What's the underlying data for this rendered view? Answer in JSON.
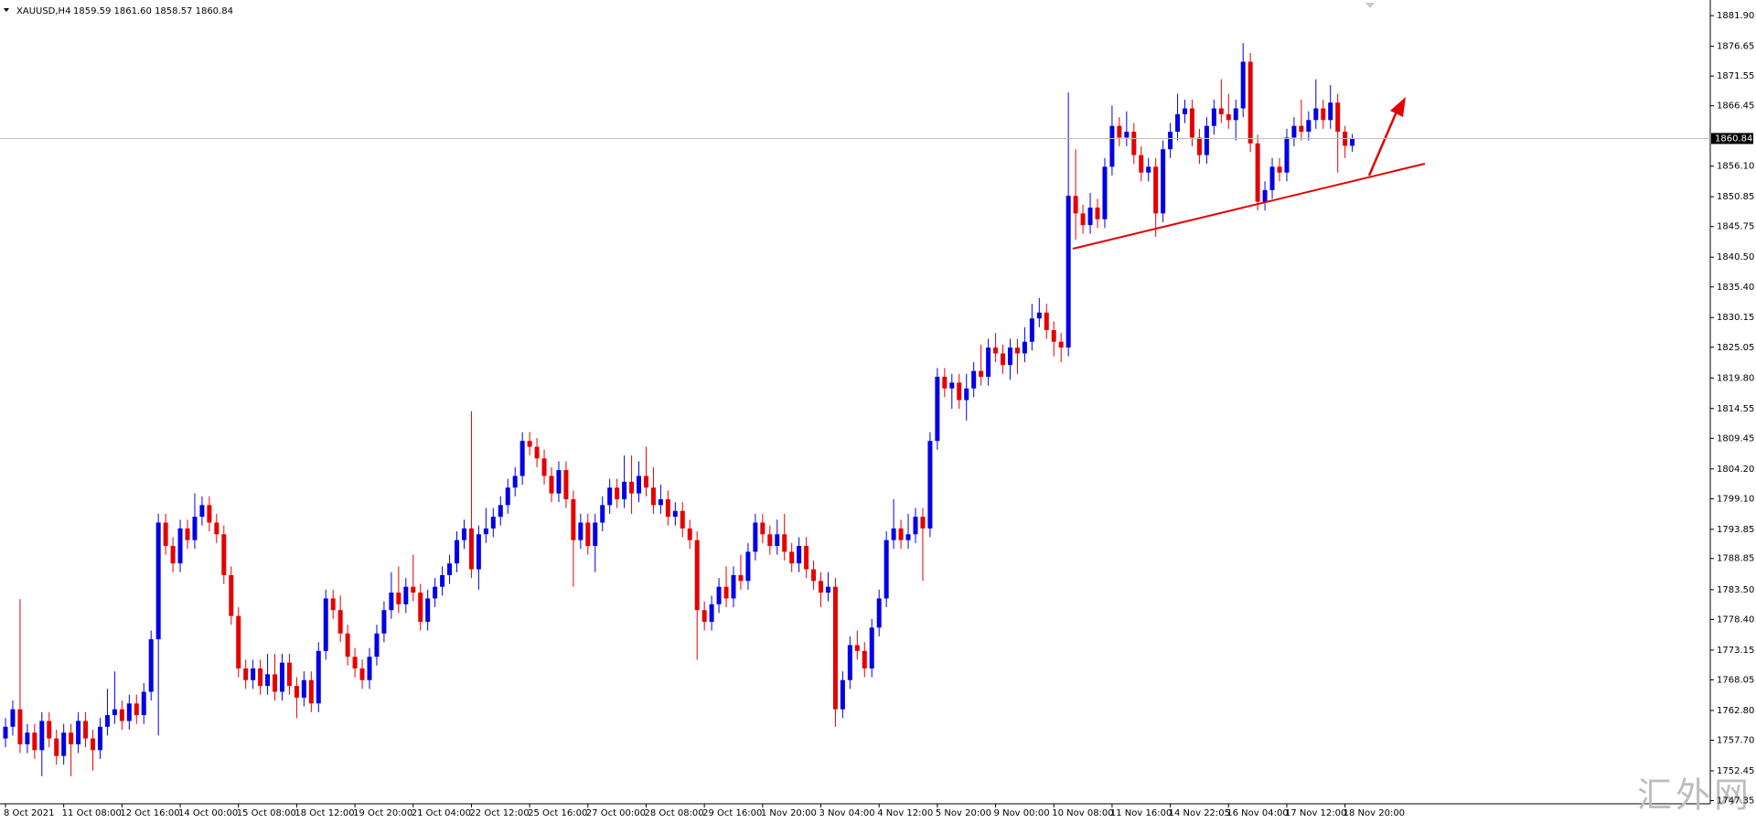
{
  "chart_data": {
    "type": "candlestick",
    "title": "XAUUSD,H4",
    "subtitle": "1859.59 1861.60 1858.57 1860.84",
    "watermark": "汇外网",
    "up_color": "#0000e6",
    "down_color": "#e60000",
    "ylim": [
      1746.8,
      1884.0
    ],
    "yticks": [
      {
        "value": 1881.9,
        "label": "1881.90"
      },
      1876.65,
      1871.55,
      1866.45,
      {
        "value": 1856.1,
        "label": "1856.10"
      },
      1850.85,
      1845.75,
      {
        "value": 1840.5,
        "label": "1840.50"
      },
      {
        "value": 1835.4,
        "label": "1835.40"
      },
      1830.15,
      1825.05,
      {
        "value": 1819.8,
        "label": "1819.80"
      },
      1814.55,
      1809.45,
      {
        "value": 1804.2,
        "label": "1804.20"
      },
      {
        "value": 1799.1,
        "label": "1799.10"
      },
      1793.85,
      1788.85,
      {
        "value": 1783.5,
        "label": "1783.50"
      },
      {
        "value": 1778.4,
        "label": "1778.40"
      },
      1773.15,
      1768.05,
      {
        "value": 1762.8,
        "label": "1762.80"
      },
      {
        "value": 1757.7,
        "label": "1757.70"
      },
      1752.45,
      1747.35
    ],
    "categories": [
      "8 Oct 2021",
      null,
      null,
      null,
      null,
      null,
      null,
      null,
      "11 Oct 08:00",
      null,
      null,
      null,
      null,
      null,
      null,
      null,
      "12 Oct 16:00",
      null,
      null,
      null,
      null,
      null,
      null,
      null,
      "14 Oct 00:00",
      null,
      null,
      null,
      null,
      null,
      null,
      null,
      "15 Oct 08:00",
      null,
      null,
      null,
      null,
      null,
      null,
      null,
      "18 Oct 12:00",
      null,
      null,
      null,
      null,
      null,
      null,
      null,
      "19 Oct 20:00",
      null,
      null,
      null,
      null,
      null,
      null,
      null,
      "21 Oct 04:00",
      null,
      null,
      null,
      null,
      null,
      null,
      null,
      "22 Oct 12:00",
      null,
      null,
      null,
      null,
      null,
      null,
      null,
      "25 Oct 16:00",
      null,
      null,
      null,
      null,
      null,
      null,
      null,
      "27 Oct 00:00",
      null,
      null,
      null,
      null,
      null,
      null,
      null,
      "28 Oct 08:00",
      null,
      null,
      null,
      null,
      null,
      null,
      null,
      "29 Oct 16:00",
      null,
      null,
      null,
      null,
      null,
      null,
      null,
      "1 Nov 20:00",
      null,
      null,
      null,
      null,
      null,
      null,
      null,
      "3 Nov 04:00",
      null,
      null,
      null,
      null,
      null,
      null,
      null,
      "4 Nov 12:00",
      null,
      null,
      null,
      null,
      null,
      null,
      null,
      "5 Nov 20:00",
      null,
      null,
      null,
      null,
      null,
      null,
      null,
      "9 Nov 00:00",
      null,
      null,
      null,
      null,
      null,
      null,
      null,
      "10 Nov 08:00",
      null,
      null,
      null,
      null,
      null,
      null,
      null,
      "11 Nov 16:00",
      null,
      null,
      null,
      null,
      null,
      null,
      null,
      "14 Nov 22:05",
      null,
      null,
      null,
      null,
      null,
      null,
      null,
      "16 Nov 04:00",
      null,
      null,
      null,
      null,
      null,
      null,
      null,
      "17 Nov 12:00",
      null,
      null,
      null,
      null,
      null,
      null,
      null,
      "18 Nov 20:00",
      null
    ],
    "candles": [
      [
        1758,
        1761.5,
        1756.5,
        1760
      ],
      [
        1760,
        1764.5,
        1758.5,
        1763
      ],
      [
        1763,
        1781.9,
        1755.5,
        1757
      ],
      [
        1757,
        1760.5,
        1755.5,
        1759
      ],
      [
        1759,
        1760.5,
        1754.5,
        1756
      ],
      [
        1756,
        1762.5,
        1751.5,
        1761
      ],
      [
        1761,
        1762.5,
        1756.5,
        1758
      ],
      [
        1758,
        1759.5,
        1753.5,
        1755
      ],
      [
        1755,
        1760.5,
        1753.5,
        1759
      ],
      [
        1759,
        1760.5,
        1751.5,
        1757
      ],
      [
        1757,
        1762.5,
        1755.5,
        1761
      ],
      [
        1761,
        1762.5,
        1756.5,
        1758
      ],
      [
        1758,
        1759.5,
        1752.5,
        1756
      ],
      [
        1756,
        1761.5,
        1754.5,
        1760
      ],
      [
        1760,
        1766.5,
        1758.5,
        1762
      ],
      [
        1762,
        1769.5,
        1760.5,
        1763
      ],
      [
        1763,
        1764.5,
        1759.5,
        1761
      ],
      [
        1761,
        1765.5,
        1759.5,
        1764
      ],
      [
        1764,
        1765.5,
        1760.5,
        1762
      ],
      [
        1762,
        1767.5,
        1760.5,
        1766
      ],
      [
        1766,
        1776.5,
        1764.5,
        1775
      ],
      [
        1775,
        1796.5,
        1758.5,
        1795
      ],
      [
        1795,
        1796.5,
        1789.5,
        1791
      ],
      [
        1791,
        1792.5,
        1786.5,
        1788
      ],
      [
        1788,
        1795.5,
        1786.5,
        1794
      ],
      [
        1794,
        1795.5,
        1790.5,
        1792
      ],
      [
        1792,
        1800,
        1790.5,
        1796
      ],
      [
        1796,
        1799.5,
        1794.5,
        1798
      ],
      [
        1798,
        1799.5,
        1793.5,
        1795
      ],
      [
        1795,
        1796.5,
        1791.5,
        1793
      ],
      [
        1793,
        1794.5,
        1784.5,
        1786
      ],
      [
        1786,
        1787.5,
        1777.5,
        1779
      ],
      [
        1779,
        1780.5,
        1768.5,
        1770
      ],
      [
        1770,
        1771.5,
        1766.5,
        1768
      ],
      [
        1768,
        1771.5,
        1766.5,
        1770
      ],
      [
        1770,
        1771.5,
        1765.5,
        1767
      ],
      [
        1767,
        1772.5,
        1765.5,
        1769
      ],
      [
        1769,
        1772.5,
        1764.5,
        1766
      ],
      [
        1766,
        1772.5,
        1764.5,
        1771
      ],
      [
        1771,
        1772.5,
        1765.5,
        1767
      ],
      [
        1767,
        1768.5,
        1761.5,
        1765
      ],
      [
        1765,
        1769.5,
        1763.5,
        1768
      ],
      [
        1768,
        1769.5,
        1762.5,
        1764
      ],
      [
        1764,
        1774.5,
        1762.5,
        1773
      ],
      [
        1773,
        1783.5,
        1771.5,
        1782
      ],
      [
        1782,
        1783.5,
        1778.5,
        1780
      ],
      [
        1780,
        1782.5,
        1774.5,
        1776
      ],
      [
        1776,
        1777.5,
        1770.5,
        1772
      ],
      [
        1772,
        1773.5,
        1768.5,
        1770
      ],
      [
        1770,
        1771.5,
        1766.5,
        1768
      ],
      [
        1768,
        1773.5,
        1766.5,
        1772
      ],
      [
        1772,
        1777.5,
        1770.5,
        1776
      ],
      [
        1776,
        1781.5,
        1774.5,
        1780
      ],
      [
        1780,
        1786.5,
        1778.5,
        1783
      ],
      [
        1783,
        1787.5,
        1779.5,
        1781
      ],
      [
        1781,
        1785.5,
        1779.5,
        1784
      ],
      [
        1784,
        1789.5,
        1781.5,
        1783
      ],
      [
        1783,
        1784.5,
        1776.5,
        1778
      ],
      [
        1778,
        1783.5,
        1776.5,
        1782
      ],
      [
        1782,
        1785.5,
        1780.5,
        1784
      ],
      [
        1784,
        1787.5,
        1782.5,
        1786
      ],
      [
        1786,
        1789.5,
        1784.5,
        1788
      ],
      [
        1788,
        1793.5,
        1786.5,
        1792
      ],
      [
        1792,
        1795.5,
        1790.5,
        1794
      ],
      [
        1794,
        1814.1,
        1785.5,
        1787
      ],
      [
        1787,
        1794.5,
        1783.5,
        1793
      ],
      [
        1793,
        1797.5,
        1791.5,
        1794
      ],
      [
        1794,
        1797.5,
        1792.5,
        1796
      ],
      [
        1796,
        1799.5,
        1794.5,
        1798
      ],
      [
        1798,
        1802.5,
        1796.5,
        1801
      ],
      [
        1801,
        1804.5,
        1799.5,
        1803
      ],
      [
        1803,
        1810.5,
        1801.5,
        1809
      ],
      [
        1809,
        1810.5,
        1806.5,
        1808
      ],
      [
        1808,
        1809.5,
        1804.5,
        1806
      ],
      [
        1806,
        1807.5,
        1801.5,
        1803
      ],
      [
        1803,
        1804.5,
        1798.5,
        1800
      ],
      [
        1800,
        1805.5,
        1798.5,
        1804
      ],
      [
        1804,
        1805.5,
        1797.5,
        1799
      ],
      [
        1799,
        1800.5,
        1784,
        1792
      ],
      [
        1792,
        1796.5,
        1790.5,
        1795
      ],
      [
        1795,
        1796.5,
        1789.5,
        1791
      ],
      [
        1791,
        1796.5,
        1786.5,
        1795
      ],
      [
        1795,
        1799.5,
        1793.5,
        1798
      ],
      [
        1798,
        1802.5,
        1796.5,
        1801
      ],
      [
        1801,
        1802.5,
        1797.5,
        1799
      ],
      [
        1799,
        1806.5,
        1797.5,
        1802
      ],
      [
        1802,
        1806.5,
        1796.5,
        1800
      ],
      [
        1800,
        1805.5,
        1798.5,
        1803
      ],
      [
        1803,
        1808,
        1799.5,
        1801
      ],
      [
        1801,
        1804.5,
        1796.5,
        1798
      ],
      [
        1798,
        1801.5,
        1796.5,
        1799
      ],
      [
        1799,
        1800.5,
        1794.5,
        1796
      ],
      [
        1796,
        1798.5,
        1794.5,
        1797
      ],
      [
        1797,
        1798.5,
        1792.5,
        1794
      ],
      [
        1794,
        1795.5,
        1790.5,
        1792
      ],
      [
        1792,
        1793.5,
        1771.5,
        1780
      ],
      [
        1780,
        1781.5,
        1776.5,
        1778
      ],
      [
        1778,
        1782.5,
        1776.5,
        1781
      ],
      [
        1781,
        1785.5,
        1779.5,
        1784
      ],
      [
        1784,
        1787.5,
        1780.5,
        1782
      ],
      [
        1782,
        1787.5,
        1780.5,
        1786
      ],
      [
        1786,
        1789.5,
        1783.5,
        1785
      ],
      [
        1785,
        1791.5,
        1783.5,
        1790
      ],
      [
        1790,
        1796.5,
        1788.5,
        1795
      ],
      [
        1795,
        1796.5,
        1791.5,
        1793
      ],
      [
        1793,
        1794.5,
        1789.5,
        1791
      ],
      [
        1791,
        1795.5,
        1789.5,
        1793
      ],
      [
        1793,
        1796.5,
        1788.5,
        1790
      ],
      [
        1790,
        1791.5,
        1786.5,
        1788
      ],
      [
        1788,
        1792.5,
        1786.5,
        1791
      ],
      [
        1791,
        1792.5,
        1785.5,
        1787
      ],
      [
        1787,
        1788.5,
        1783.5,
        1785
      ],
      [
        1785,
        1786.5,
        1780.5,
        1783
      ],
      [
        1783,
        1786.5,
        1781.5,
        1784
      ],
      [
        1784,
        1785.5,
        1760,
        1763
      ],
      [
        1763,
        1769.5,
        1761.5,
        1768
      ],
      [
        1768,
        1775.5,
        1766.5,
        1774
      ],
      [
        1774,
        1776.5,
        1771.5,
        1773
      ],
      [
        1773,
        1774.5,
        1768.5,
        1770
      ],
      [
        1770,
        1778.5,
        1768.5,
        1777
      ],
      [
        1777,
        1783.5,
        1775.5,
        1782
      ],
      [
        1782,
        1793.5,
        1780.5,
        1792
      ],
      [
        1792,
        1799,
        1790.5,
        1794
      ],
      [
        1794,
        1795.5,
        1790.5,
        1792
      ],
      [
        1792,
        1796.5,
        1790.5,
        1793
      ],
      [
        1793,
        1797.5,
        1791.5,
        1796
      ],
      [
        1796,
        1797.5,
        1785,
        1794
      ],
      [
        1794,
        1810.5,
        1792.5,
        1809
      ],
      [
        1809,
        1821.5,
        1807.5,
        1820
      ],
      [
        1820,
        1821.5,
        1816.5,
        1818
      ],
      [
        1818,
        1820.5,
        1814.5,
        1819
      ],
      [
        1819,
        1820.5,
        1814.5,
        1816
      ],
      [
        1816,
        1820.5,
        1812.5,
        1818
      ],
      [
        1818,
        1822.5,
        1816.5,
        1821
      ],
      [
        1821,
        1825.5,
        1818.5,
        1820
      ],
      [
        1820,
        1826.5,
        1818.5,
        1825
      ],
      [
        1825,
        1827.5,
        1822.5,
        1824
      ],
      [
        1824,
        1825.5,
        1820.5,
        1822
      ],
      [
        1822,
        1826.5,
        1819.5,
        1825
      ],
      [
        1825,
        1826.5,
        1820.5,
        1824
      ],
      [
        1824,
        1828.5,
        1822.5,
        1826
      ],
      [
        1826,
        1832.5,
        1824.5,
        1830
      ],
      [
        1830,
        1833.5,
        1828.5,
        1831
      ],
      [
        1831,
        1832.5,
        1826.5,
        1828
      ],
      [
        1828,
        1829.5,
        1823.5,
        1826
      ],
      [
        1826,
        1827.5,
        1822.5,
        1825
      ],
      [
        1825,
        1868.7,
        1823.5,
        1851
      ],
      [
        1851,
        1859,
        1843.5,
        1848
      ],
      [
        1848,
        1849.5,
        1844.5,
        1846
      ],
      [
        1846,
        1851.5,
        1844.5,
        1849
      ],
      [
        1849,
        1850.5,
        1845.5,
        1847
      ],
      [
        1847,
        1857.5,
        1845.5,
        1856
      ],
      [
        1856,
        1866.5,
        1854.5,
        1863
      ],
      [
        1863,
        1864.5,
        1859.5,
        1861
      ],
      [
        1861,
        1865.5,
        1859.5,
        1862
      ],
      [
        1862,
        1863.5,
        1856.5,
        1858
      ],
      [
        1858,
        1859.5,
        1853.5,
        1855
      ],
      [
        1855,
        1857.5,
        1853.5,
        1856
      ],
      [
        1856,
        1857.5,
        1844,
        1848
      ],
      [
        1848,
        1860.5,
        1846.5,
        1859
      ],
      [
        1859,
        1863.5,
        1857.5,
        1862
      ],
      [
        1862,
        1868.5,
        1860.5,
        1865
      ],
      [
        1865,
        1867.5,
        1863.5,
        1866
      ],
      [
        1866,
        1867.5,
        1859.5,
        1861
      ],
      [
        1861,
        1862.5,
        1856.5,
        1858
      ],
      [
        1858,
        1864.5,
        1856.5,
        1863
      ],
      [
        1863,
        1867.5,
        1861.5,
        1866
      ],
      [
        1866,
        1871,
        1863.5,
        1865
      ],
      [
        1865,
        1868.5,
        1862.5,
        1864
      ],
      [
        1864,
        1867.5,
        1860.5,
        1866
      ],
      [
        1866,
        1877.2,
        1864.5,
        1874
      ],
      [
        1874,
        1875.5,
        1858.5,
        1860
      ],
      [
        1860,
        1861.5,
        1848.5,
        1850
      ],
      [
        1850,
        1853.5,
        1848.5,
        1852
      ],
      [
        1852,
        1857.5,
        1850.5,
        1856
      ],
      [
        1856,
        1857.5,
        1853.5,
        1855
      ],
      [
        1855,
        1862.5,
        1853.5,
        1861
      ],
      [
        1861,
        1864.5,
        1859.5,
        1863
      ],
      [
        1863,
        1867.5,
        1860.5,
        1862
      ],
      [
        1862,
        1865.5,
        1860.5,
        1864
      ],
      [
        1864,
        1871,
        1862.5,
        1866
      ],
      [
        1866,
        1867.5,
        1862.5,
        1864
      ],
      [
        1864,
        1870,
        1862.5,
        1867
      ],
      [
        1867,
        1868.5,
        1855,
        1862
      ],
      [
        1862,
        1863,
        1857.5,
        1859.59
      ],
      [
        1859.59,
        1861.6,
        1858.57,
        1860.84
      ]
    ]
  }
}
